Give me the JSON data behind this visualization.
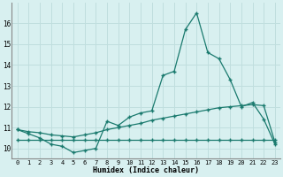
{
  "xlabel": "Humidex (Indice chaleur)",
  "x_values": [
    0,
    1,
    2,
    3,
    4,
    5,
    6,
    7,
    8,
    9,
    10,
    11,
    12,
    13,
    14,
    15,
    16,
    17,
    18,
    19,
    20,
    21,
    22,
    23
  ],
  "line1_y": [
    10.9,
    10.7,
    10.5,
    10.2,
    10.1,
    9.8,
    9.9,
    10.0,
    11.3,
    11.1,
    11.5,
    11.7,
    11.8,
    13.5,
    13.7,
    15.7,
    16.5,
    14.6,
    14.3,
    13.3,
    12.0,
    12.2,
    11.4,
    10.2
  ],
  "line2_y": [
    10.9,
    10.8,
    10.75,
    10.65,
    10.6,
    10.55,
    10.65,
    10.75,
    10.9,
    11.0,
    11.1,
    11.2,
    11.35,
    11.45,
    11.55,
    11.65,
    11.75,
    11.85,
    11.95,
    12.0,
    12.05,
    12.1,
    12.05,
    10.3
  ],
  "line3_y": [
    10.4,
    10.4,
    10.4,
    10.4,
    10.4,
    10.4,
    10.4,
    10.4,
    10.4,
    10.4,
    10.4,
    10.4,
    10.4,
    10.4,
    10.4,
    10.4,
    10.4,
    10.4,
    10.4,
    10.4,
    10.4,
    10.4,
    10.4,
    10.4
  ],
  "line_color": "#1a7a6e",
  "bg_color": "#d8f0f0",
  "grid_color": "#c0dede",
  "ylim": [
    9.5,
    17.0
  ],
  "yticks": [
    10,
    11,
    12,
    13,
    14,
    15,
    16
  ],
  "xticks": [
    0,
    1,
    2,
    3,
    4,
    5,
    6,
    7,
    8,
    9,
    10,
    11,
    12,
    13,
    14,
    15,
    16,
    17,
    18,
    19,
    20,
    21,
    22,
    23
  ],
  "figsize": [
    3.2,
    2.0
  ],
  "dpi": 100
}
